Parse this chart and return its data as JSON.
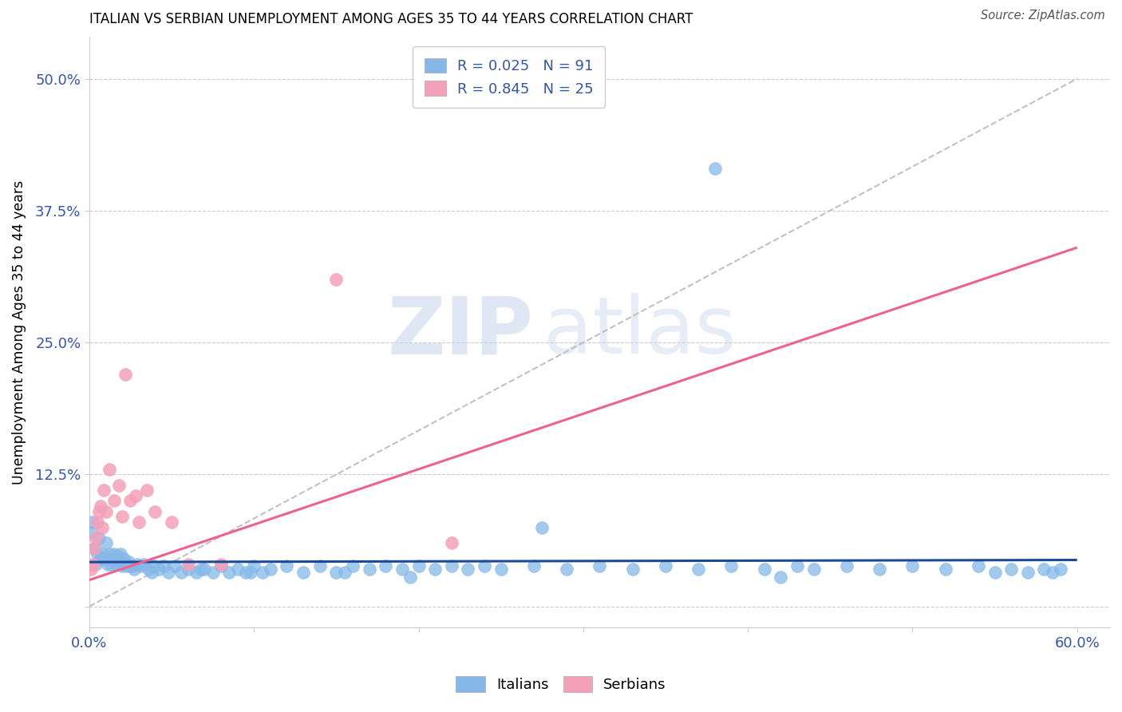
{
  "title": "ITALIAN VS SERBIAN UNEMPLOYMENT AMONG AGES 35 TO 44 YEARS CORRELATION CHART",
  "source": "Source: ZipAtlas.com",
  "ylabel": "Unemployment Among Ages 35 to 44 years",
  "xlim": [
    0.0,
    0.62
  ],
  "ylim": [
    -0.02,
    0.54
  ],
  "xticks": [
    0.0,
    0.1,
    0.2,
    0.3,
    0.4,
    0.5,
    0.6
  ],
  "xticklabels": [
    "0.0%",
    "",
    "",
    "",
    "",
    "",
    "60.0%"
  ],
  "yticks": [
    0.0,
    0.125,
    0.25,
    0.375,
    0.5
  ],
  "yticklabels": [
    "",
    "12.5%",
    "25.0%",
    "37.5%",
    "50.0%"
  ],
  "italian_R": 0.025,
  "italian_N": 91,
  "serbian_R": 0.845,
  "serbian_N": 25,
  "italian_color": "#85B8E8",
  "serbian_color": "#F4A0B8",
  "italian_line_color": "#1A4A9A",
  "serbian_line_color": "#F06090",
  "ref_line_color": "#BBBBBB",
  "watermark_color": "#D8E4F0",
  "it_x": [
    0.002,
    0.003,
    0.004,
    0.005,
    0.006,
    0.007,
    0.008,
    0.009,
    0.01,
    0.011,
    0.012,
    0.013,
    0.014,
    0.015,
    0.016,
    0.017,
    0.018,
    0.019,
    0.02,
    0.021,
    0.022,
    0.023,
    0.024,
    0.025,
    0.027,
    0.029,
    0.031,
    0.033,
    0.036,
    0.039,
    0.042,
    0.045,
    0.048,
    0.052,
    0.056,
    0.06,
    0.065,
    0.07,
    0.075,
    0.08,
    0.085,
    0.09,
    0.095,
    0.1,
    0.105,
    0.11,
    0.12,
    0.13,
    0.14,
    0.15,
    0.16,
    0.17,
    0.18,
    0.19,
    0.2,
    0.21,
    0.22,
    0.23,
    0.24,
    0.25,
    0.27,
    0.29,
    0.31,
    0.33,
    0.35,
    0.37,
    0.39,
    0.41,
    0.43,
    0.44,
    0.46,
    0.48,
    0.5,
    0.52,
    0.54,
    0.55,
    0.56,
    0.57,
    0.58,
    0.585,
    0.59,
    0.001,
    0.026,
    0.038,
    0.068,
    0.098,
    0.155,
    0.195,
    0.275,
    0.38,
    0.42
  ],
  "it_y": [
    0.08,
    0.055,
    0.04,
    0.05,
    0.065,
    0.045,
    0.05,
    0.045,
    0.06,
    0.04,
    0.05,
    0.04,
    0.045,
    0.05,
    0.04,
    0.048,
    0.042,
    0.05,
    0.038,
    0.045,
    0.04,
    0.038,
    0.042,
    0.038,
    0.035,
    0.04,
    0.038,
    0.04,
    0.035,
    0.038,
    0.035,
    0.038,
    0.032,
    0.038,
    0.032,
    0.035,
    0.032,
    0.035,
    0.032,
    0.038,
    0.032,
    0.035,
    0.032,
    0.038,
    0.032,
    0.035,
    0.038,
    0.032,
    0.038,
    0.032,
    0.038,
    0.035,
    0.038,
    0.035,
    0.038,
    0.035,
    0.038,
    0.035,
    0.038,
    0.035,
    0.038,
    0.035,
    0.038,
    0.035,
    0.038,
    0.035,
    0.038,
    0.035,
    0.038,
    0.035,
    0.038,
    0.035,
    0.038,
    0.035,
    0.038,
    0.032,
    0.035,
    0.032,
    0.035,
    0.032,
    0.035,
    0.07,
    0.038,
    0.032,
    0.035,
    0.032,
    0.032,
    0.028,
    0.075,
    0.415,
    0.028
  ],
  "sr_x": [
    0.001,
    0.002,
    0.003,
    0.004,
    0.005,
    0.006,
    0.007,
    0.008,
    0.009,
    0.01,
    0.012,
    0.015,
    0.018,
    0.02,
    0.022,
    0.025,
    0.028,
    0.03,
    0.035,
    0.04,
    0.05,
    0.06,
    0.08,
    0.15,
    0.22
  ],
  "sr_y": [
    0.035,
    0.04,
    0.055,
    0.065,
    0.08,
    0.09,
    0.095,
    0.075,
    0.11,
    0.09,
    0.13,
    0.1,
    0.115,
    0.085,
    0.22,
    0.1,
    0.105,
    0.08,
    0.11,
    0.09,
    0.08,
    0.04,
    0.04,
    0.31,
    0.06
  ],
  "it_line_x": [
    0.0,
    0.6
  ],
  "it_line_y": [
    0.042,
    0.044
  ],
  "sr_line_x": [
    0.0,
    0.6
  ],
  "sr_line_y": [
    0.025,
    0.34
  ],
  "ref_line_x": [
    0.0,
    0.6
  ],
  "ref_line_y": [
    0.0,
    0.5
  ]
}
